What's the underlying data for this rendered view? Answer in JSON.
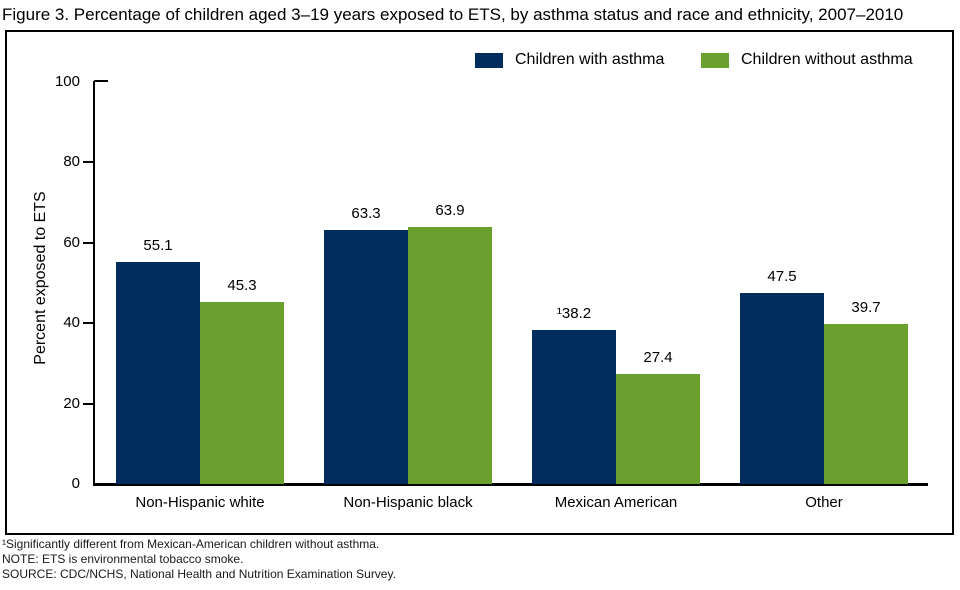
{
  "title": "Figure 3. Percentage of children aged 3–19 years exposed to ETS, by asthma status and race and ethnicity, 2007–2010",
  "legend": {
    "with_asthma_label": "Children with asthma",
    "without_asthma_label": "Children without asthma"
  },
  "colors": {
    "with_asthma": "#002d5e",
    "without_asthma": "#6aa02d",
    "axis": "#000000"
  },
  "y_axis": {
    "label": "Percent exposed to ETS",
    "ticks": [
      0,
      20,
      40,
      60,
      80,
      100
    ]
  },
  "chart_data": {
    "type": "bar",
    "title": "Figure 3. Percentage of children aged 3–19 years exposed to ETS, by asthma status and race and ethnicity, 2007–2010",
    "xlabel": "",
    "ylabel": "Percent exposed to ETS",
    "ylim": [
      0,
      100
    ],
    "grid": false,
    "legend_position": "top-right",
    "categories": [
      "Non-Hispanic white",
      "Non-Hispanic black",
      "Mexican American",
      "Other"
    ],
    "series": [
      {
        "name": "Children with asthma",
        "color": "#002d5e",
        "values": [
          55.1,
          63.3,
          38.2,
          47.5
        ],
        "value_labels": [
          "55.1",
          "63.3",
          "¹38.2",
          "47.5"
        ]
      },
      {
        "name": "Children without asthma",
        "color": "#6aa02d",
        "values": [
          45.3,
          63.9,
          27.4,
          39.7
        ],
        "value_labels": [
          "45.3",
          "63.9",
          "27.4",
          "39.7"
        ]
      }
    ]
  },
  "footnotes": [
    "¹Significantly different from Mexican-American children without asthma.",
    "NOTE: ETS is environmental tobacco smoke.",
    "SOURCE: CDC/NCHS, National Health and Nutrition Examination Survey."
  ]
}
